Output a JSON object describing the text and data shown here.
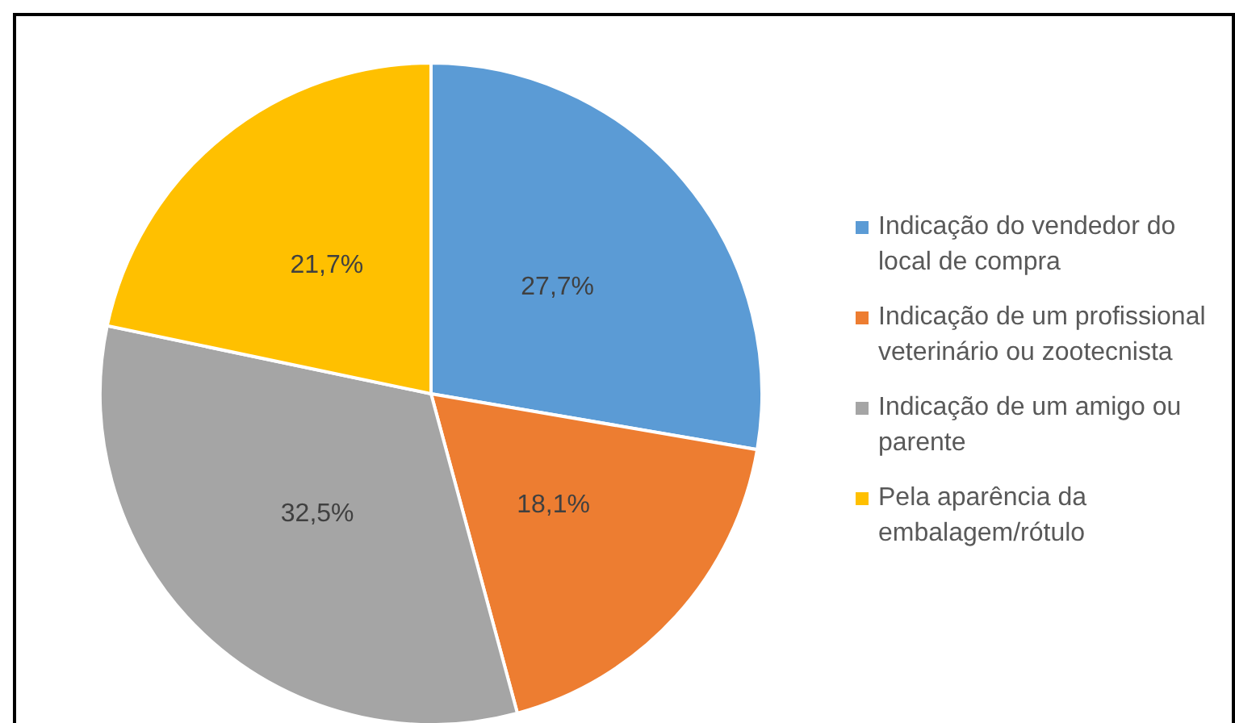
{
  "chart_data": {
    "type": "pie",
    "categories": [
      "Indicação do vendedor do local de compra",
      "Indicação de um profissional veterinário ou zootecnista",
      "Indicação de um amigo ou parente",
      "Pela aparência da embalagem/rótulo"
    ],
    "values": [
      27.7,
      18.1,
      32.5,
      21.7
    ],
    "colors": [
      "#5b9bd5",
      "#ed7d31",
      "#a5a5a5",
      "#ffc000"
    ],
    "value_labels": [
      "27,7%",
      "18,1%",
      "32,5%",
      "21,7%"
    ],
    "legend": "right"
  }
}
